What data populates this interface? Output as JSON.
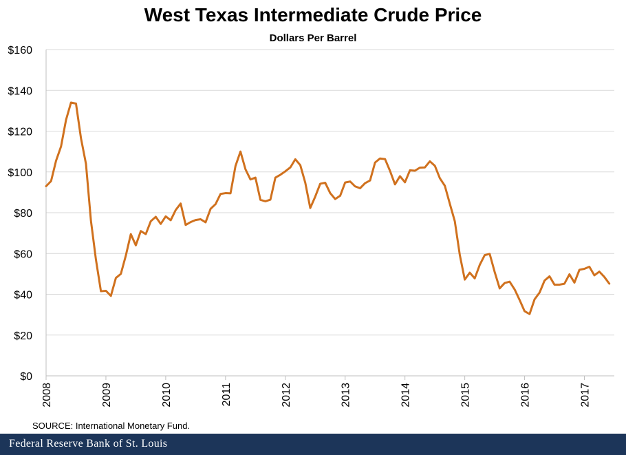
{
  "footer": {
    "source": "SOURCE: International Monetary Fund.",
    "brand": "Federal Reserve Bank of St. Louis"
  },
  "chart_data": {
    "type": "line",
    "title": "West Texas Intermediate Crude Price",
    "subtitle": "Dollars Per Barrel",
    "xlabel": "",
    "ylabel": "",
    "xlim": [
      "2008-01",
      "2017-07"
    ],
    "ylim": [
      0,
      160
    ],
    "yticks": [
      0,
      20,
      40,
      60,
      80,
      100,
      120,
      140,
      160
    ],
    "ytick_labels": [
      "$0",
      "$20",
      "$40",
      "$60",
      "$80",
      "$100",
      "$120",
      "$140",
      "$160"
    ],
    "xticks": [
      "2008",
      "2009",
      "2010",
      "2011",
      "2012",
      "2013",
      "2014",
      "2015",
      "2016",
      "2017"
    ],
    "grid": "horizontal",
    "legend": "none",
    "series_color": "#d0711e",
    "x": [
      "2008-01",
      "2008-02",
      "2008-03",
      "2008-04",
      "2008-05",
      "2008-06",
      "2008-07",
      "2008-08",
      "2008-09",
      "2008-10",
      "2008-11",
      "2008-12",
      "2009-01",
      "2009-02",
      "2009-03",
      "2009-04",
      "2009-05",
      "2009-06",
      "2009-07",
      "2009-08",
      "2009-09",
      "2009-10",
      "2009-11",
      "2009-12",
      "2010-01",
      "2010-02",
      "2010-03",
      "2010-04",
      "2010-05",
      "2010-06",
      "2010-07",
      "2010-08",
      "2010-09",
      "2010-10",
      "2010-11",
      "2010-12",
      "2011-01",
      "2011-02",
      "2011-03",
      "2011-04",
      "2011-05",
      "2011-06",
      "2011-07",
      "2011-08",
      "2011-09",
      "2011-10",
      "2011-11",
      "2011-12",
      "2012-01",
      "2012-02",
      "2012-03",
      "2012-04",
      "2012-05",
      "2012-06",
      "2012-07",
      "2012-08",
      "2012-09",
      "2012-10",
      "2012-11",
      "2012-12",
      "2013-01",
      "2013-02",
      "2013-03",
      "2013-04",
      "2013-05",
      "2013-06",
      "2013-07",
      "2013-08",
      "2013-09",
      "2013-10",
      "2013-11",
      "2013-12",
      "2014-01",
      "2014-02",
      "2014-03",
      "2014-04",
      "2014-05",
      "2014-06",
      "2014-07",
      "2014-08",
      "2014-09",
      "2014-10",
      "2014-11",
      "2014-12",
      "2015-01",
      "2015-02",
      "2015-03",
      "2015-04",
      "2015-05",
      "2015-06",
      "2015-07",
      "2015-08",
      "2015-09",
      "2015-10",
      "2015-11",
      "2015-12",
      "2016-01",
      "2016-02",
      "2016-03",
      "2016-04",
      "2016-05",
      "2016-06",
      "2016-07",
      "2016-08",
      "2016-09",
      "2016-10",
      "2016-11",
      "2016-12",
      "2017-01",
      "2017-02",
      "2017-03",
      "2017-04",
      "2017-05",
      "2017-06"
    ],
    "series": [
      {
        "values": [
          93,
          95.5,
          105.5,
          112.5,
          125.5,
          134,
          133.5,
          116.5,
          104,
          76,
          57,
          41.5,
          41.7,
          39.2,
          48,
          50,
          59,
          69.5,
          64,
          71,
          69.5,
          75.8,
          78,
          74.5,
          78.2,
          76.3,
          81.3,
          84.5,
          74,
          75.4,
          76.4,
          76.8,
          75.3,
          81.9,
          84.2,
          89.2,
          89.6,
          89.5,
          102.9,
          110,
          101.3,
          96.3,
          97.2,
          86.3,
          85.6,
          86.4,
          97.2,
          98.6,
          100.3,
          102.2,
          106.2,
          103.3,
          94.7,
          82.3,
          87.9,
          94.2,
          94.7,
          89.6,
          86.7,
          88.3,
          94.8,
          95.3,
          92.9,
          92,
          94.5,
          95.8,
          104.6,
          106.6,
          106.3,
          100.5,
          93.9,
          97.9,
          94.9,
          100.8,
          100.6,
          102.1,
          102.2,
          105.2,
          103,
          96.9,
          93.2,
          84.4,
          75.8,
          59.3,
          47.2,
          50.6,
          47.8,
          54.4,
          59.2,
          59.8,
          50.9,
          42.9,
          45.5,
          46.2,
          42.4,
          37.2,
          31.7,
          30.3,
          37.5,
          40.8,
          46.7,
          48.8,
          44.7,
          44.7,
          45.2,
          49.8,
          45.7,
          52,
          52.5,
          53.5,
          49.3,
          51.1,
          48.5,
          45.2
        ]
      }
    ]
  }
}
